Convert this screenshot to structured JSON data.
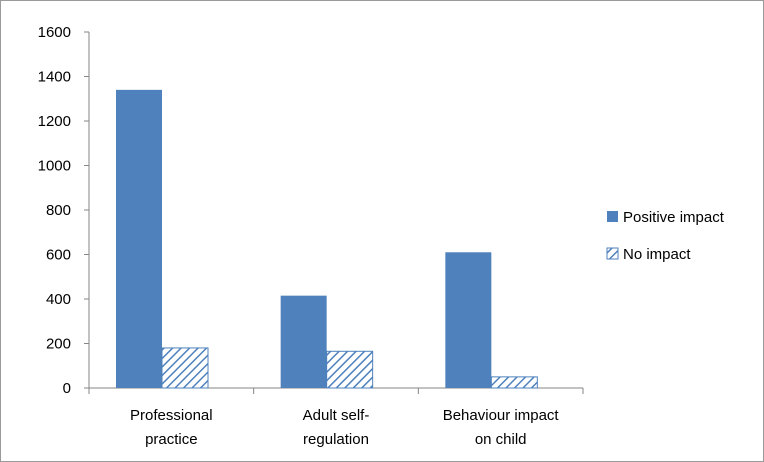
{
  "chart_data": {
    "type": "bar",
    "categories": [
      [
        "Professional",
        "practice"
      ],
      [
        "Adult self-",
        "regulation"
      ],
      [
        "Behaviour impact",
        "on child"
      ]
    ],
    "series": [
      {
        "name": "Positive impact",
        "values": [
          1340,
          415,
          610
        ],
        "fill": "solid",
        "color": "#4f81bd"
      },
      {
        "name": "No impact",
        "values": [
          180,
          165,
          50
        ],
        "fill": "hatched",
        "color": "#4f81bd"
      }
    ],
    "ylim": [
      0,
      1600
    ],
    "yticks": [
      0,
      200,
      400,
      600,
      800,
      1000,
      1200,
      1400,
      1600
    ],
    "grid": false,
    "legend_position": "right",
    "title": "",
    "xlabel": "",
    "ylabel": ""
  }
}
